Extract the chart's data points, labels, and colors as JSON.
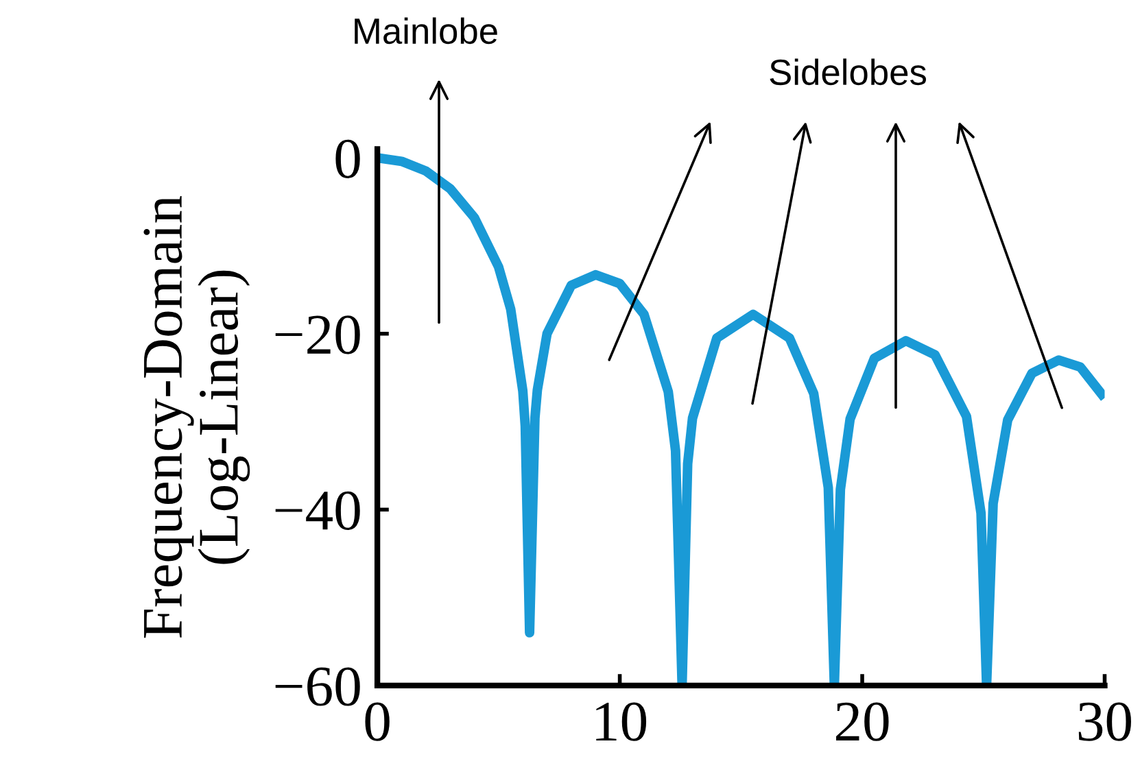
{
  "chart_data": {
    "type": "line",
    "ylabel": "Frequency-Domain\n(Log-Linear)",
    "x": [
      0,
      1,
      2,
      3,
      4,
      5,
      5.5,
      6,
      6.1,
      6.28,
      6.5,
      6.6,
      7,
      8,
      9,
      10,
      11,
      12,
      12.3,
      12.57,
      12.8,
      13,
      14,
      15.5,
      17,
      18,
      18.6,
      18.85,
      19.1,
      19.5,
      20.5,
      21.8,
      23,
      24.3,
      24.9,
      25.13,
      25.4,
      26,
      27,
      28.1,
      29,
      30
    ],
    "series": [
      {
        "color": "#1a9ad6",
        "values": [
          0,
          -0.4,
          -1.5,
          -3.5,
          -6.8,
          -12.4,
          -17.2,
          -26.5,
          -30.5,
          -54,
          -29.6,
          -26.4,
          -20,
          -14.5,
          -13.3,
          -14.3,
          -17.8,
          -26.6,
          -33.3,
          -60,
          -34.8,
          -29.6,
          -20.5,
          -17.8,
          -20.5,
          -26.8,
          -37.5,
          -60,
          -37.7,
          -29.7,
          -22.8,
          -20.8,
          -22.4,
          -29.4,
          -40.4,
          -60,
          -39.3,
          -29.8,
          -24.5,
          -23,
          -23.8,
          -27.3
        ]
      }
    ],
    "xlim": [
      0,
      30
    ],
    "ylim": [
      -60,
      1
    ],
    "xticks": [
      0,
      10,
      20,
      30
    ],
    "yticks": [
      0,
      -20,
      -40,
      -60
    ],
    "grid": false,
    "legend": false,
    "marker": "none",
    "line_style": "solid",
    "annotations": [
      "Mainlobe",
      "Sidelobes"
    ]
  }
}
